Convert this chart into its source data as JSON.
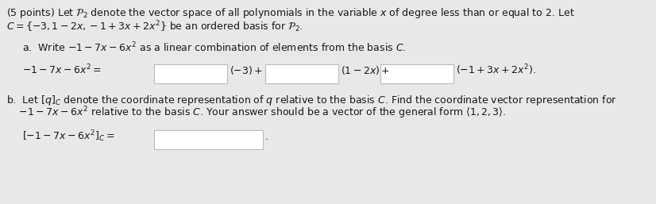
{
  "background_color": "#e8e8e8",
  "text_color": "#1a1a1a",
  "box_color": "#ffffff",
  "box_edge_color": "#bbbbbb",
  "font_size_main": 9.0,
  "title_line1": "(5 points) Let $\\mathcal{P}_2$ denote the vector space of all polynomials in the variable $x$ of degree less than or equal to 2. Let",
  "title_line2": "$C = \\{-3, 1 - 2x, -1 + 3x + 2x^2\\}$ be an ordered basis for $\\mathcal{P}_2$.",
  "part_a_label": "a.  Write $-1 - 7x - 6x^2$ as a linear combination of elements from the basis $C$.",
  "part_a_eq_left": "$-1 - 7x - 6x^2 =$",
  "part_a_mid1": "$(-3)+$",
  "part_a_mid2": "$(1 - 2x)+$",
  "part_a_end": "$(-1 + 3x + 2x^2).$",
  "part_b_label_line1": "b.  Let $[q]_C$ denote the coordinate representation of $q$ relative to the basis $C$. Find the coordinate vector representation for",
  "part_b_label_line2": "    $-1 - 7x - 6x^2$ relative to the basis $C$. Your answer should be a vector of the general form $\\langle 1,2,3\\rangle$.",
  "part_b_eq_left": "$[-1 - 7x - 6x^2]_C =$",
  "period": "."
}
